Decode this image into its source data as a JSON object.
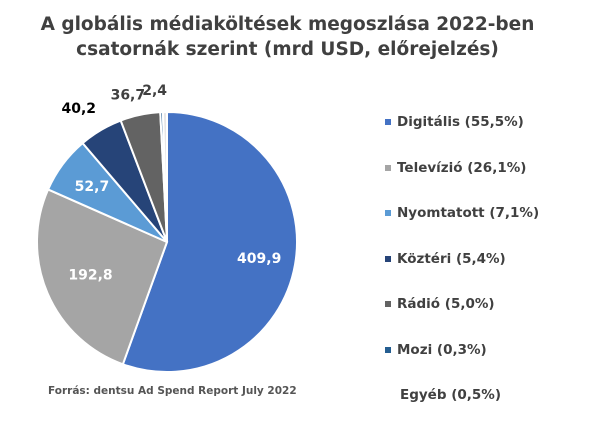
{
  "chart_data": {
    "type": "pie",
    "title_lines": [
      "A globális médiaköltések megoszlása 2022-ben",
      "csatornák szerint (mrd USD, előrejelzés)"
    ],
    "slices": [
      {
        "label": "Digitális (55,5%)",
        "value": 409.9,
        "value_label": "409,9",
        "color": "#4472C4",
        "legend_swatch": true
      },
      {
        "label": "Televízió (26,1%)",
        "value": 192.8,
        "value_label": "192,8",
        "color": "#A5A5A5",
        "legend_swatch": true
      },
      {
        "label": "Nyomtatott (7,1%)",
        "value": 52.7,
        "value_label": "52,7",
        "color": "#5B9BD5",
        "legend_swatch": true
      },
      {
        "label": "Köztéri (5,4%)",
        "value": 40.2,
        "value_label": "40,2",
        "color": "#264478",
        "legend_swatch": true
      },
      {
        "label": "Rádió (5,0%)",
        "value": 36.7,
        "value_label": "36,7",
        "color": "#636363",
        "legend_swatch": true
      },
      {
        "label": "Mozi (0,3%)",
        "value": 2.4,
        "value_label": "2,4",
        "color": "#255E91",
        "legend_swatch": true
      },
      {
        "label": "Egyéb (0,5%)",
        "value": 3.7,
        "value_label": "",
        "color": "#E7E6E6",
        "legend_swatch": false
      }
    ],
    "label_colors": {
      "inside": "#ffffff",
      "outside": "#404040",
      "emphasis": "#000000"
    }
  },
  "source": "Forrás: dentsu Ad Spend Report July 2022"
}
